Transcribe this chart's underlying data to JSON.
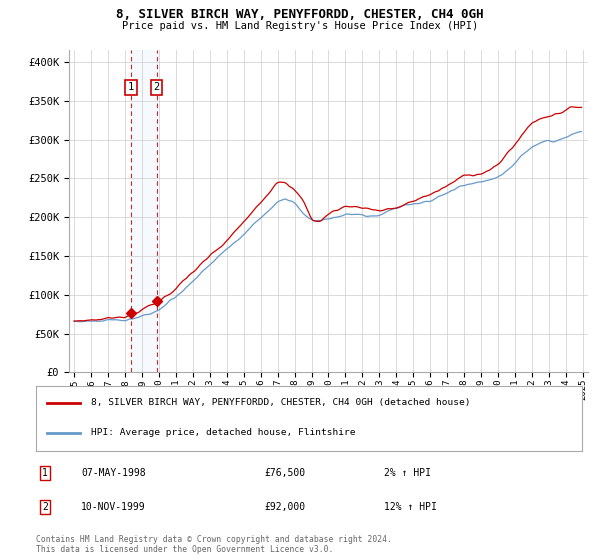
{
  "title": "8, SILVER BIRCH WAY, PENYFFORDD, CHESTER, CH4 0GH",
  "subtitle": "Price paid vs. HM Land Registry's House Price Index (HPI)",
  "ylabel_ticks": [
    0,
    50000,
    100000,
    150000,
    200000,
    250000,
    300000,
    350000,
    400000
  ],
  "ylim": [
    0,
    415000
  ],
  "xlim_start": 1994.7,
  "xlim_end": 2025.3,
  "legend_line1": "8, SILVER BIRCH WAY, PENYFFORDD, CHESTER, CH4 0GH (detached house)",
  "legend_line2": "HPI: Average price, detached house, Flintshire",
  "transaction1_date_num": 1998.35,
  "transaction1_label": "1",
  "transaction1_price": 76500,
  "transaction2_date_num": 1999.87,
  "transaction2_label": "2",
  "transaction2_price": 92000,
  "table_rows": [
    [
      "1",
      "07-MAY-1998",
      "£76,500",
      "2% ↑ HPI"
    ],
    [
      "2",
      "10-NOV-1999",
      "£92,000",
      "12% ↑ HPI"
    ]
  ],
  "footnote": "Contains HM Land Registry data © Crown copyright and database right 2024.\nThis data is licensed under the Open Government Licence v3.0.",
  "line_color_property": "#cc0000",
  "line_color_hpi": "#6699cc",
  "marker_color": "#cc0000",
  "vline_color": "#cc0000",
  "shade_color": "#ddeeff",
  "box_color": "#cc0000",
  "background_color": "#ffffff",
  "grid_color": "#cccccc"
}
